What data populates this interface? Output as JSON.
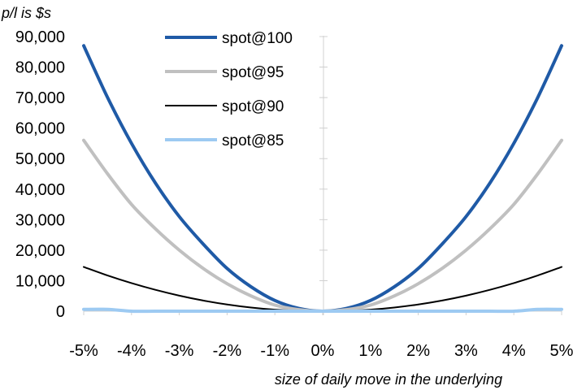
{
  "chart_data": {
    "type": "line",
    "ylabel": "p/l is $s",
    "xlabel": "size of daily move in the underlying",
    "xlim": [
      -5,
      5
    ],
    "ylim": [
      0,
      90000
    ],
    "x_ticks": [
      -5,
      -4,
      -3,
      -2,
      -1,
      0,
      1,
      2,
      3,
      4,
      5
    ],
    "x_tick_labels": [
      "-5%",
      "-4%",
      "-3%",
      "-2%",
      "-1%",
      "0%",
      "1%",
      "2%",
      "3%",
      "4%",
      "5%"
    ],
    "y_ticks": [
      0,
      10000,
      20000,
      30000,
      40000,
      50000,
      60000,
      70000,
      80000,
      90000
    ],
    "y_tick_labels": [
      "0",
      "10,000",
      "20,000",
      "30,000",
      "40,000",
      "50,000",
      "60,000",
      "70,000",
      "80,000",
      "90,000"
    ],
    "grid": false,
    "legend_position": "top-center",
    "x": [
      -5,
      -4.5,
      -4,
      -3.5,
      -3,
      -2.5,
      -2,
      -1.5,
      -1,
      -0.5,
      0,
      0.5,
      1,
      1.5,
      2,
      2.5,
      3,
      3.5,
      4,
      4.5,
      5
    ],
    "series": [
      {
        "name": "spot@100",
        "color": "#1f5aa6",
        "width": 4,
        "values": [
          87000,
          70000,
          55000,
          42000,
          31000,
          22000,
          14000,
          8000,
          3500,
          900,
          0,
          900,
          3500,
          8000,
          14000,
          22000,
          31000,
          42000,
          55000,
          70000,
          87000
        ]
      },
      {
        "name": "spot@95",
        "color": "#c0c0c0",
        "width": 4,
        "values": [
          56000,
          45000,
          35000,
          27000,
          20000,
          14000,
          9000,
          5000,
          2000,
          500,
          0,
          500,
          2000,
          5000,
          9000,
          14000,
          20000,
          27000,
          35000,
          45000,
          56000
        ]
      },
      {
        "name": "spot@90",
        "color": "#000000",
        "width": 2,
        "values": [
          14500,
          11700,
          9200,
          7000,
          5100,
          3500,
          2200,
          1200,
          500,
          120,
          0,
          120,
          500,
          1200,
          2200,
          3500,
          5100,
          7000,
          9200,
          11700,
          14500
        ]
      },
      {
        "name": "spot@85",
        "color": "#9dcaf2",
        "width": 4,
        "values": [
          600,
          600,
          0,
          0,
          0,
          0,
          0,
          0,
          0,
          0,
          0,
          0,
          0,
          0,
          0,
          0,
          0,
          0,
          0,
          600,
          600
        ]
      }
    ]
  }
}
